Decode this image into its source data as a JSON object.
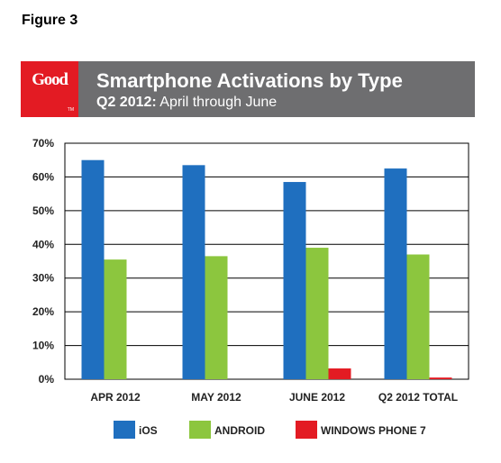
{
  "figure_label": "Figure 3",
  "logo": {
    "text": "Good",
    "tm": "TM"
  },
  "header": {
    "title": "Smartphone Activations by Type",
    "subtitle_strong": "Q2 2012:",
    "subtitle_rest": " April through June"
  },
  "colors": {
    "ios": "#1f6fbf",
    "android": "#8cc63e",
    "windows_phone_7": "#e31b23",
    "header_bg": "#6e6e70",
    "logo_bg": "#e31b23"
  },
  "chart_data": {
    "type": "bar",
    "categories": [
      "APR 2012",
      "MAY 2012",
      "JUNE 2012",
      "Q2 2012 TOTAL"
    ],
    "series": [
      {
        "name": "iOS",
        "values": [
          65,
          63.5,
          58.5,
          62.5
        ]
      },
      {
        "name": "ANDROID",
        "values": [
          35.5,
          36.5,
          39,
          37
        ]
      },
      {
        "name": "WINDOWS PHONE 7",
        "values": [
          0,
          0,
          3.2,
          0.5
        ]
      }
    ],
    "y_ticks": [
      "0%",
      "10%",
      "20%",
      "30%",
      "40%",
      "50%",
      "60%",
      "70%"
    ],
    "ylim": [
      0,
      70
    ],
    "grid": true,
    "legend_position": "bottom"
  }
}
